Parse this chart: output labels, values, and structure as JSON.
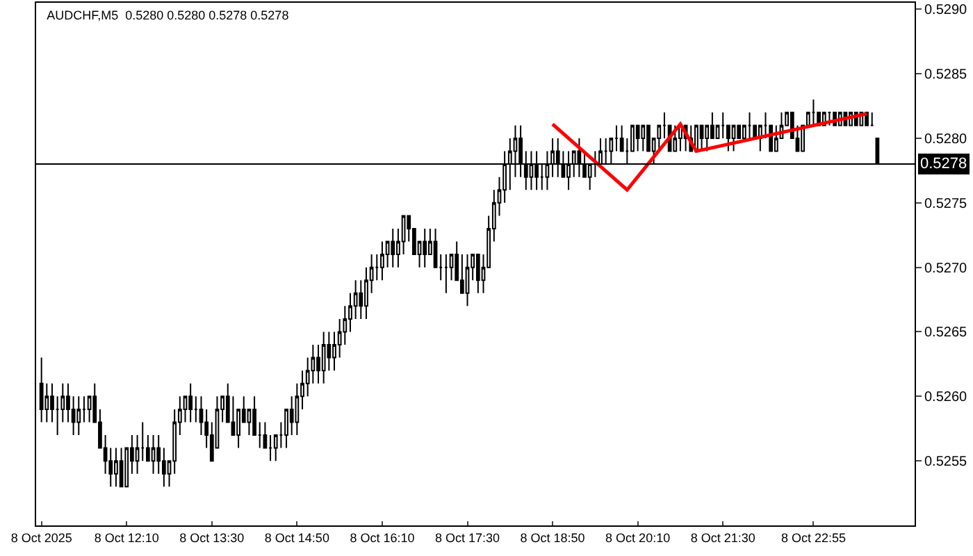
{
  "chart_data": {
    "type": "candlestick",
    "title": "AUDCHF,M5  0.5280 0.5280 0.5278 0.5278",
    "x": [
      "2025-10-08T10:50",
      "2025-10-08T10:55",
      "2025-10-08T11:00",
      "2025-10-08T11:05",
      "2025-10-08T11:10",
      "2025-10-08T11:15",
      "2025-10-08T11:20",
      "2025-10-08T11:25",
      "2025-10-08T11:30",
      "2025-10-08T11:35",
      "2025-10-08T11:40",
      "2025-10-08T11:45",
      "2025-10-08T11:50",
      "2025-10-08T11:55",
      "2025-10-08T12:00",
      "2025-10-08T12:05",
      "2025-10-08T12:10",
      "2025-10-08T12:15",
      "2025-10-08T12:20",
      "2025-10-08T12:25",
      "2025-10-08T12:30",
      "2025-10-08T12:35",
      "2025-10-08T12:40",
      "2025-10-08T12:45",
      "2025-10-08T12:50",
      "2025-10-08T12:55",
      "2025-10-08T13:00",
      "2025-10-08T13:05",
      "2025-10-08T13:10",
      "2025-10-08T13:15",
      "2025-10-08T13:20",
      "2025-10-08T13:25",
      "2025-10-08T13:30",
      "2025-10-08T13:35",
      "2025-10-08T13:40",
      "2025-10-08T13:45",
      "2025-10-08T13:50",
      "2025-10-08T13:55",
      "2025-10-08T14:00",
      "2025-10-08T14:05",
      "2025-10-08T14:10",
      "2025-10-08T14:15",
      "2025-10-08T14:20",
      "2025-10-08T14:25",
      "2025-10-08T14:30",
      "2025-10-08T14:35",
      "2025-10-08T14:40",
      "2025-10-08T14:45",
      "2025-10-08T14:50",
      "2025-10-08T14:55",
      "2025-10-08T15:00",
      "2025-10-08T15:05",
      "2025-10-08T15:10",
      "2025-10-08T15:15",
      "2025-10-08T15:20",
      "2025-10-08T15:25",
      "2025-10-08T15:30",
      "2025-10-08T15:35",
      "2025-10-08T15:40",
      "2025-10-08T15:45",
      "2025-10-08T15:50",
      "2025-10-08T15:55",
      "2025-10-08T16:00",
      "2025-10-08T16:05",
      "2025-10-08T16:10",
      "2025-10-08T16:15",
      "2025-10-08T16:20",
      "2025-10-08T16:25",
      "2025-10-08T16:30",
      "2025-10-08T16:35",
      "2025-10-08T16:40",
      "2025-10-08T16:45",
      "2025-10-08T16:50",
      "2025-10-08T16:55",
      "2025-10-08T17:00",
      "2025-10-08T17:05",
      "2025-10-08T17:10",
      "2025-10-08T17:15",
      "2025-10-08T17:20",
      "2025-10-08T17:25",
      "2025-10-08T17:30",
      "2025-10-08T17:35",
      "2025-10-08T17:40",
      "2025-10-08T17:45",
      "2025-10-08T17:50",
      "2025-10-08T17:55",
      "2025-10-08T18:00",
      "2025-10-08T18:05",
      "2025-10-08T18:10",
      "2025-10-08T18:15",
      "2025-10-08T18:20",
      "2025-10-08T18:25",
      "2025-10-08T18:30",
      "2025-10-08T18:35",
      "2025-10-08T18:40",
      "2025-10-08T18:45",
      "2025-10-08T18:50",
      "2025-10-08T18:55",
      "2025-10-08T19:00",
      "2025-10-08T19:05",
      "2025-10-08T19:10",
      "2025-10-08T19:15",
      "2025-10-08T19:20",
      "2025-10-08T19:25",
      "2025-10-08T19:30",
      "2025-10-08T19:35",
      "2025-10-08T19:40",
      "2025-10-08T19:45",
      "2025-10-08T19:50",
      "2025-10-08T19:55",
      "2025-10-08T20:00",
      "2025-10-08T20:05",
      "2025-10-08T20:10",
      "2025-10-08T20:15",
      "2025-10-08T20:20",
      "2025-10-08T20:25",
      "2025-10-08T20:30",
      "2025-10-08T20:35",
      "2025-10-08T20:40",
      "2025-10-08T20:45",
      "2025-10-08T20:50",
      "2025-10-08T20:55",
      "2025-10-08T21:00",
      "2025-10-08T21:05",
      "2025-10-08T21:10",
      "2025-10-08T21:15",
      "2025-10-08T21:20",
      "2025-10-08T21:25",
      "2025-10-08T21:30",
      "2025-10-08T21:35",
      "2025-10-08T21:40",
      "2025-10-08T21:45",
      "2025-10-08T21:50",
      "2025-10-08T21:55",
      "2025-10-08T22:00",
      "2025-10-08T22:05",
      "2025-10-08T22:10",
      "2025-10-08T22:15",
      "2025-10-08T22:20",
      "2025-10-08T22:25",
      "2025-10-08T22:30",
      "2025-10-08T22:35",
      "2025-10-08T22:40",
      "2025-10-08T22:45",
      "2025-10-08T22:50",
      "2025-10-08T22:55",
      "2025-10-08T23:00",
      "2025-10-08T23:05",
      "2025-10-08T23:10",
      "2025-10-08T23:15",
      "2025-10-08T23:20",
      "2025-10-08T23:25",
      "2025-10-08T23:30",
      "2025-10-08T23:35",
      "2025-10-08T23:40",
      "2025-10-08T23:45",
      "2025-10-08T23:50",
      "2025-10-08T23:55"
    ],
    "xlim": [
      "2025-10-08T10:45",
      "2025-10-09T00:30"
    ],
    "xticks": [
      {
        "value": "2025-10-08T10:50",
        "label": "8 Oct 2025"
      },
      {
        "value": "2025-10-08T12:10",
        "label": "8 Oct 12:10"
      },
      {
        "value": "2025-10-08T13:30",
        "label": "8 Oct 13:30"
      },
      {
        "value": "2025-10-08T14:50",
        "label": "8 Oct 14:50"
      },
      {
        "value": "2025-10-08T16:10",
        "label": "8 Oct 16:10"
      },
      {
        "value": "2025-10-08T17:30",
        "label": "8 Oct 17:30"
      },
      {
        "value": "2025-10-08T18:50",
        "label": "8 Oct 18:50"
      },
      {
        "value": "2025-10-08T20:10",
        "label": "8 Oct 20:10"
      },
      {
        "value": "2025-10-08T21:30",
        "label": "8 Oct 21:30"
      },
      {
        "value": "2025-10-08T22:55",
        "label": "8 Oct 22:55"
      }
    ],
    "ylim": [
      0.525,
      0.52905
    ],
    "yticks": [
      0.5255,
      {
        "value": 0.526,
        "label": "0.5260"
      },
      0.5265,
      {
        "value": 0.527,
        "label": "0.5270"
      },
      0.5275,
      {
        "value": 0.528,
        "label": "0.5280"
      },
      0.5285,
      {
        "value": 0.529,
        "label": "0.5290"
      }
    ],
    "ref_lines": [
      {
        "axis": "y",
        "value": 0.5278,
        "label": "0.5278",
        "color": "#000000"
      }
    ],
    "grid": false,
    "series": [
      {
        "color": "#000000",
        "ohlc": [
          [
            0.5261,
            0.5263,
            0.5258,
            0.5259
          ],
          [
            0.5259,
            0.5261,
            0.5258,
            0.526
          ],
          [
            0.526,
            0.5261,
            0.5258,
            0.5259
          ],
          [
            0.5259,
            0.526,
            0.5257,
            0.5259
          ],
          [
            0.5259,
            0.5261,
            0.5258,
            0.526
          ],
          [
            0.526,
            0.5261,
            0.5258,
            0.5259
          ],
          [
            0.5259,
            0.526,
            0.5257,
            0.5258
          ],
          [
            0.5258,
            0.526,
            0.5257,
            0.5259
          ],
          [
            0.5259,
            0.526,
            0.5258,
            0.5259
          ],
          [
            0.5259,
            0.526,
            0.5258,
            0.526
          ],
          [
            0.526,
            0.5261,
            0.5258,
            0.5258
          ],
          [
            0.5258,
            0.5259,
            0.5256,
            0.5256
          ],
          [
            0.5256,
            0.5257,
            0.5254,
            0.5255
          ],
          [
            0.5255,
            0.5256,
            0.5253,
            0.5254
          ],
          [
            0.5254,
            0.5256,
            0.5253,
            0.5255
          ],
          [
            0.5255,
            0.5256,
            0.5253,
            0.5253
          ],
          [
            0.5253,
            0.5256,
            0.5253,
            0.5256
          ],
          [
            0.5256,
            0.5257,
            0.5254,
            0.5255
          ],
          [
            0.5255,
            0.5257,
            0.5254,
            0.5256
          ],
          [
            0.5256,
            0.5258,
            0.5255,
            0.5256
          ],
          [
            0.5256,
            0.5257,
            0.5255,
            0.5255
          ],
          [
            0.5255,
            0.5257,
            0.5254,
            0.5256
          ],
          [
            0.5256,
            0.5257,
            0.5254,
            0.5255
          ],
          [
            0.5255,
            0.5256,
            0.5253,
            0.5254
          ],
          [
            0.5254,
            0.5255,
            0.5253,
            0.5255
          ],
          [
            0.5255,
            0.5259,
            0.5254,
            0.5258
          ],
          [
            0.5258,
            0.526,
            0.5257,
            0.5259
          ],
          [
            0.5259,
            0.526,
            0.5258,
            0.526
          ],
          [
            0.526,
            0.5261,
            0.5258,
            0.5259
          ],
          [
            0.5259,
            0.526,
            0.5258,
            0.5259
          ],
          [
            0.5259,
            0.526,
            0.5257,
            0.5258
          ],
          [
            0.5258,
            0.5259,
            0.5256,
            0.5257
          ],
          [
            0.5257,
            0.5258,
            0.5255,
            0.5255
          ],
          [
            0.5256,
            0.526,
            0.5256,
            0.5259
          ],
          [
            0.5259,
            0.526,
            0.5258,
            0.526
          ],
          [
            0.526,
            0.5261,
            0.5258,
            0.5258
          ],
          [
            0.5258,
            0.526,
            0.5257,
            0.5257
          ],
          [
            0.5257,
            0.5259,
            0.5256,
            0.5259
          ],
          [
            0.5259,
            0.526,
            0.5258,
            0.5258
          ],
          [
            0.5258,
            0.5259,
            0.5257,
            0.5259
          ],
          [
            0.5259,
            0.526,
            0.5257,
            0.5257
          ],
          [
            0.5257,
            0.5258,
            0.5256,
            0.5257
          ],
          [
            0.5257,
            0.5258,
            0.5256,
            0.5256
          ],
          [
            0.5256,
            0.5257,
            0.5255,
            0.5256
          ],
          [
            0.5256,
            0.5257,
            0.5255,
            0.5257
          ],
          [
            0.5257,
            0.5258,
            0.5256,
            0.5257
          ],
          [
            0.5257,
            0.5259,
            0.5256,
            0.5259
          ],
          [
            0.5259,
            0.526,
            0.5257,
            0.5258
          ],
          [
            0.5258,
            0.5261,
            0.5257,
            0.526
          ],
          [
            0.526,
            0.5262,
            0.5259,
            0.5261
          ],
          [
            0.5261,
            0.5263,
            0.526,
            0.5262
          ],
          [
            0.5262,
            0.5264,
            0.5261,
            0.5263
          ],
          [
            0.5263,
            0.5264,
            0.5261,
            0.5262
          ],
          [
            0.5262,
            0.5265,
            0.5261,
            0.5264
          ],
          [
            0.5264,
            0.5265,
            0.5262,
            0.5263
          ],
          [
            0.5263,
            0.5265,
            0.5262,
            0.5264
          ],
          [
            0.5264,
            0.5266,
            0.5263,
            0.5265
          ],
          [
            0.5265,
            0.5267,
            0.5264,
            0.5266
          ],
          [
            0.5266,
            0.5268,
            0.5265,
            0.5267
          ],
          [
            0.5267,
            0.5269,
            0.5266,
            0.5268
          ],
          [
            0.5268,
            0.5269,
            0.5266,
            0.5267
          ],
          [
            0.5267,
            0.527,
            0.5266,
            0.5269
          ],
          [
            0.5269,
            0.5271,
            0.5268,
            0.527
          ],
          [
            0.527,
            0.5271,
            0.5269,
            0.527
          ],
          [
            0.527,
            0.5272,
            0.5269,
            0.5271
          ],
          [
            0.5271,
            0.5272,
            0.527,
            0.5272
          ],
          [
            0.5272,
            0.5273,
            0.527,
            0.5271
          ],
          [
            0.5271,
            0.5273,
            0.527,
            0.5272
          ],
          [
            0.5272,
            0.5274,
            0.5271,
            0.5274
          ],
          [
            0.5274,
            0.5274,
            0.5272,
            0.5273
          ],
          [
            0.5273,
            0.5273,
            0.5271,
            0.5271
          ],
          [
            0.5271,
            0.5272,
            0.527,
            0.5272
          ],
          [
            0.5272,
            0.5273,
            0.527,
            0.5271
          ],
          [
            0.5271,
            0.5273,
            0.5271,
            0.5272
          ],
          [
            0.5272,
            0.5273,
            0.527,
            0.527
          ],
          [
            0.527,
            0.5271,
            0.5269,
            0.527
          ],
          [
            0.527,
            0.5271,
            0.5268,
            0.527
          ],
          [
            0.527,
            0.5271,
            0.5269,
            0.5271
          ],
          [
            0.5271,
            0.5272,
            0.5269,
            0.5269
          ],
          [
            0.5269,
            0.5271,
            0.5268,
            0.5268
          ],
          [
            0.5268,
            0.5271,
            0.5267,
            0.527
          ],
          [
            0.527,
            0.5271,
            0.5269,
            0.5271
          ],
          [
            0.5271,
            0.5271,
            0.5268,
            0.5269
          ],
          [
            0.5269,
            0.5271,
            0.5268,
            0.527
          ],
          [
            0.527,
            0.5274,
            0.527,
            0.5273
          ],
          [
            0.5273,
            0.5276,
            0.5272,
            0.5275
          ],
          [
            0.5275,
            0.5277,
            0.5274,
            0.5276
          ],
          [
            0.5276,
            0.5279,
            0.5275,
            0.5278
          ],
          [
            0.5278,
            0.528,
            0.5276,
            0.5279
          ],
          [
            0.5279,
            0.5281,
            0.5277,
            0.528
          ],
          [
            0.528,
            0.5281,
            0.5277,
            0.5278
          ],
          [
            0.5278,
            0.5279,
            0.5276,
            0.5277
          ],
          [
            0.5277,
            0.5279,
            0.5276,
            0.5278
          ],
          [
            0.5278,
            0.5279,
            0.5276,
            0.5277
          ],
          [
            0.5277,
            0.5278,
            0.5276,
            0.5277
          ],
          [
            0.5277,
            0.5279,
            0.5276,
            0.5278
          ],
          [
            0.5278,
            0.528,
            0.5277,
            0.5279
          ],
          [
            0.5279,
            0.528,
            0.5277,
            0.5278
          ],
          [
            0.5278,
            0.5279,
            0.5277,
            0.5277
          ],
          [
            0.5277,
            0.5279,
            0.5276,
            0.5278
          ],
          [
            0.5278,
            0.5279,
            0.5277,
            0.5279
          ],
          [
            0.5279,
            0.528,
            0.5277,
            0.5278
          ],
          [
            0.5278,
            0.5279,
            0.5277,
            0.5277
          ],
          [
            0.5277,
            0.5278,
            0.5276,
            0.5278
          ],
          [
            0.5278,
            0.5279,
            0.5277,
            0.5278
          ],
          [
            0.5278,
            0.528,
            0.5278,
            0.5279
          ],
          [
            0.5279,
            0.528,
            0.5278,
            0.5279
          ],
          [
            0.5279,
            0.528,
            0.5278,
            0.528
          ],
          [
            0.528,
            0.5281,
            0.5279,
            0.528
          ],
          [
            0.528,
            0.5281,
            0.5279,
            0.5279
          ],
          [
            0.5279,
            0.528,
            0.5278,
            0.5279
          ],
          [
            0.5279,
            0.5281,
            0.5279,
            0.5281
          ],
          [
            0.5281,
            0.5281,
            0.5279,
            0.528
          ],
          [
            0.528,
            0.5281,
            0.5279,
            0.5281
          ],
          [
            0.5281,
            0.5281,
            0.5279,
            0.5279
          ],
          [
            0.5279,
            0.528,
            0.5278,
            0.528
          ],
          [
            0.528,
            0.5281,
            0.5279,
            0.5281
          ],
          [
            0.5281,
            0.5282,
            0.528,
            0.5281
          ],
          [
            0.5281,
            0.5281,
            0.5279,
            0.5279
          ],
          [
            0.5279,
            0.5281,
            0.5279,
            0.528
          ],
          [
            0.528,
            0.5281,
            0.5279,
            0.5281
          ],
          [
            0.5281,
            0.5281,
            0.5279,
            0.528
          ],
          [
            0.528,
            0.5281,
            0.5279,
            0.5279
          ],
          [
            0.5279,
            0.5281,
            0.5279,
            0.5281
          ],
          [
            0.5281,
            0.5281,
            0.5279,
            0.528
          ],
          [
            0.528,
            0.5281,
            0.5279,
            0.5281
          ],
          [
            0.5281,
            0.5282,
            0.528,
            0.528
          ],
          [
            0.528,
            0.5281,
            0.528,
            0.5281
          ],
          [
            0.5281,
            0.5282,
            0.528,
            0.5281
          ],
          [
            0.5281,
            0.5281,
            0.5279,
            0.528
          ],
          [
            0.528,
            0.5281,
            0.5279,
            0.5281
          ],
          [
            0.5281,
            0.5281,
            0.528,
            0.528
          ],
          [
            0.528,
            0.5281,
            0.528,
            0.5281
          ],
          [
            0.5281,
            0.5282,
            0.528,
            0.5281
          ],
          [
            0.5281,
            0.5281,
            0.528,
            0.528
          ],
          [
            0.528,
            0.5281,
            0.5279,
            0.5281
          ],
          [
            0.5281,
            0.5282,
            0.528,
            0.5281
          ],
          [
            0.5281,
            0.5281,
            0.5279,
            0.5279
          ],
          [
            0.5279,
            0.5281,
            0.5279,
            0.528
          ],
          [
            0.528,
            0.5282,
            0.528,
            0.5281
          ],
          [
            0.5281,
            0.5282,
            0.5281,
            0.5282
          ],
          [
            0.5282,
            0.5282,
            0.528,
            0.528
          ],
          [
            0.528,
            0.5281,
            0.5279,
            0.5279
          ],
          [
            0.5279,
            0.5281,
            0.5279,
            0.5281
          ],
          [
            0.5281,
            0.5282,
            0.5281,
            0.5282
          ],
          [
            0.5282,
            0.5283,
            0.5281,
            0.5282
          ],
          [
            0.5282,
            0.5282,
            0.5281,
            0.5281
          ],
          [
            0.5281,
            0.5282,
            0.5281,
            0.5282
          ],
          [
            0.5282,
            0.5282,
            0.5281,
            0.5282
          ],
          [
            0.5282,
            0.5282,
            0.5281,
            0.5281
          ],
          [
            0.5281,
            0.5282,
            0.5281,
            0.5282
          ],
          [
            0.5282,
            0.5282,
            0.5281,
            0.5281
          ],
          [
            0.5281,
            0.5282,
            0.5281,
            0.5282
          ],
          [
            0.5282,
            0.5282,
            0.5281,
            0.5281
          ],
          [
            0.5281,
            0.5282,
            0.5281,
            0.5282
          ],
          [
            0.5282,
            0.5282,
            0.5281,
            0.5281
          ],
          [
            0.5281,
            0.5282,
            0.5281,
            0.5281
          ],
          [
            0.528,
            0.528,
            0.5278,
            0.5278
          ]
        ]
      },
      {
        "type": "line",
        "color": "#ff0000",
        "marker": "none",
        "line_style": "solid",
        "x": [
          "2025-10-08T18:50",
          "2025-10-08T20:00",
          "2025-10-08T20:50",
          "2025-10-08T21:05",
          "2025-10-08T23:45"
        ],
        "values": [
          0.52811,
          0.5276,
          0.52811,
          0.5279,
          0.52819
        ]
      }
    ]
  }
}
